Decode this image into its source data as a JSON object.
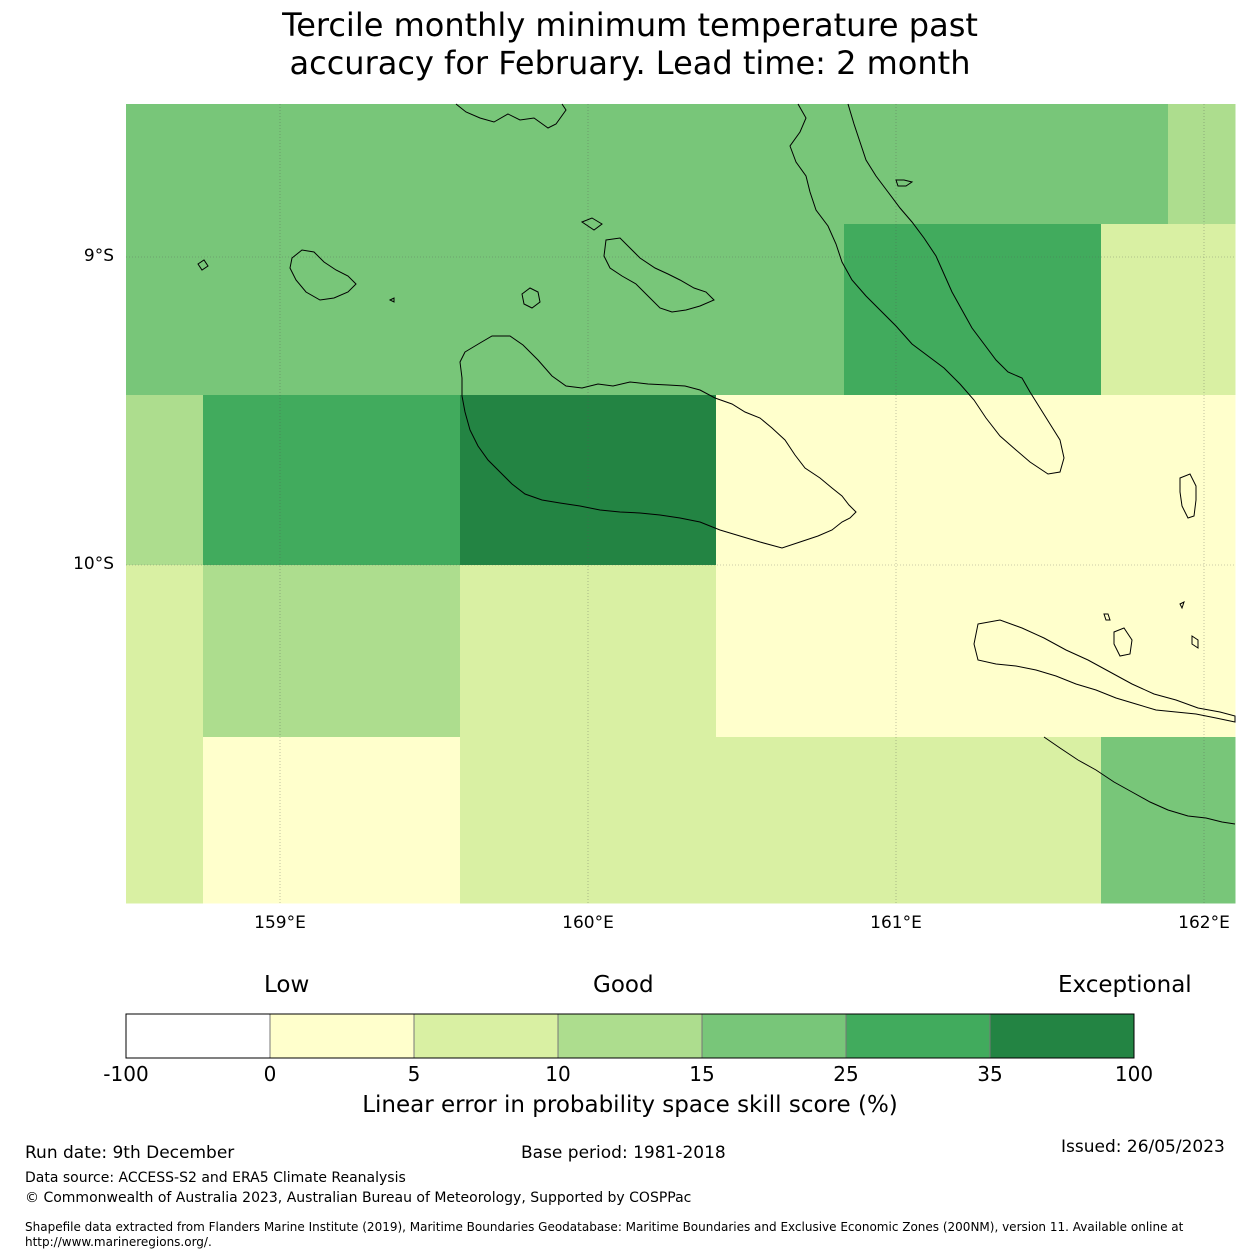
{
  "title_line1": "Tercile monthly minimum temperature past",
  "title_line2": "accuracy for February. Lead time: 2 month",
  "map": {
    "lat_labels": [
      "9°S",
      "10°S"
    ],
    "lon_labels": [
      "159°E",
      "160°E",
      "161°E",
      "162°E"
    ],
    "category_colors": {
      "0-5": "#ffffcc",
      "5-10": "#d9f0a3",
      "10-15": "#addd8e",
      "15-25": "#78c679",
      "25-35": "#41ab5d",
      "35-100": "#238443"
    },
    "cells": [
      {
        "row": 0,
        "cells": [
          "15-25",
          "15-25",
          "15-25",
          "15-25",
          "15-25",
          "15-25",
          "15-25",
          "15-25",
          "15-25",
          "10-15"
        ]
      },
      {
        "row": 1,
        "cells": [
          "15-25",
          "15-25",
          "15-25",
          "15-25",
          "15-25",
          "15-25",
          "25-35",
          "25-35",
          "5-10",
          "5-10"
        ]
      },
      {
        "row": 2,
        "cells": [
          "10-15",
          "25-35",
          "25-35",
          "35-100",
          "35-100",
          "0-5",
          "0-5",
          "0-5",
          "0-5",
          "0-5"
        ]
      },
      {
        "row": 3,
        "cells": [
          "5-10",
          "10-15",
          "10-15",
          "5-10",
          "5-10",
          "0-5",
          "0-5",
          "0-5",
          "0-5",
          "0-5"
        ]
      },
      {
        "row": 4,
        "cells": [
          "5-10",
          "0-5",
          "0-5",
          "5-10",
          "5-10",
          "5-10",
          "5-10",
          "5-10",
          "15-25",
          "15-25"
        ]
      }
    ]
  },
  "colorbar": {
    "headers": [
      "Low",
      "Good",
      "Exceptional"
    ],
    "ticks": [
      "-100",
      "0",
      "5",
      "10",
      "15",
      "25",
      "35",
      "100"
    ],
    "colors": [
      "#ffffff",
      "#ffffcc",
      "#d9f0a3",
      "#addd8e",
      "#78c679",
      "#41ab5d",
      "#238443"
    ],
    "label": "Linear error in probability space skill score (%)"
  },
  "footer": {
    "run_date": "Run date: 9th December",
    "base_period": "Base period: 1981-2018",
    "issued": "Issued: 26/05/2023",
    "data_source": "Data source: ACCESS-S2 and ERA5 Climate Reanalysis",
    "copyright": "© Commonwealth of Australia 2023, Australian Bureau of Meteorology, Supported by COSPPac",
    "shapefile": "Shapefile data extracted from Flanders Marine Institute (2019), Maritime Boundaries Geodatabase: Maritime Boundaries and Exclusive Economic Zones (200NM), version 11. Available online at http://www.marineregions.org/."
  }
}
